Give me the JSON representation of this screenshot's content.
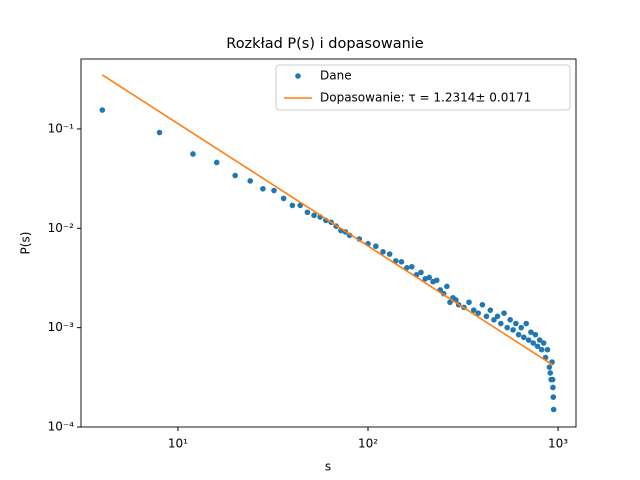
{
  "chart_data": {
    "type": "scatter",
    "title": "Rozkład P(s) i dopasowanie",
    "xlabel": "s",
    "ylabel": "P(s)",
    "xscale": "log",
    "yscale": "log",
    "legend": "upper right",
    "xlim": [
      3.09,
      1243
    ],
    "ylim": [
      0.0001,
      0.506
    ],
    "xticks": [
      {
        "value": 10,
        "label": "10¹"
      },
      {
        "value": 100,
        "label": "10²"
      },
      {
        "value": 1000,
        "label": "10³"
      }
    ],
    "yticks": [
      {
        "value": 0.0001,
        "label": "10⁻⁴"
      },
      {
        "value": 0.001,
        "label": "10⁻³"
      },
      {
        "value": 0.01,
        "label": "10⁻²"
      },
      {
        "value": 0.1,
        "label": "10⁻¹"
      }
    ],
    "series": [
      {
        "name": "Dane",
        "type": "scatter",
        "color": "#1f77b4",
        "x": [
          4,
          8,
          12,
          16,
          20,
          24,
          28,
          32,
          36,
          40,
          44,
          48,
          52,
          56,
          60,
          64,
          68,
          72,
          76,
          80,
          90,
          100,
          110,
          120,
          130,
          140,
          150,
          160,
          170,
          180,
          190,
          200,
          210,
          220,
          230,
          240,
          250,
          260,
          270,
          280,
          290,
          300,
          320,
          340,
          360,
          380,
          400,
          420,
          440,
          460,
          480,
          500,
          520,
          540,
          560,
          580,
          600,
          620,
          640,
          660,
          680,
          700,
          720,
          740,
          760,
          780,
          800,
          820,
          840,
          860,
          880,
          900,
          910,
          920,
          930,
          936,
          940,
          944,
          948
        ],
        "values": [
          0.155,
          0.092,
          0.056,
          0.046,
          0.034,
          0.03,
          0.025,
          0.024,
          0.02,
          0.017,
          0.017,
          0.0145,
          0.0135,
          0.013,
          0.012,
          0.0115,
          0.0105,
          0.0095,
          0.0092,
          0.0085,
          0.0078,
          0.007,
          0.0066,
          0.0058,
          0.0055,
          0.0047,
          0.0046,
          0.004,
          0.0041,
          0.0034,
          0.0036,
          0.0031,
          0.0032,
          0.0029,
          0.003,
          0.0024,
          0.0022,
          0.0026,
          0.0018,
          0.002,
          0.0019,
          0.0017,
          0.0016,
          0.0018,
          0.0015,
          0.0014,
          0.0017,
          0.0013,
          0.0015,
          0.0012,
          0.0013,
          0.0011,
          0.0014,
          0.001,
          0.0012,
          0.00095,
          0.0011,
          0.00085,
          0.001,
          0.0008,
          0.0011,
          0.00075,
          0.0009,
          0.0007,
          0.00085,
          0.00065,
          0.00075,
          0.0006,
          0.0007,
          0.0005,
          0.0006,
          0.0004,
          0.00035,
          0.0003,
          0.00045,
          0.0003,
          0.00025,
          0.0002,
          0.00015
        ]
      },
      {
        "name": "Dopasowanie: τ = 1.2314± 0.0171",
        "type": "line",
        "color": "#ff7f0e",
        "x": [
          4,
          940
        ],
        "values": [
          0.35,
          0.00042
        ]
      }
    ]
  }
}
